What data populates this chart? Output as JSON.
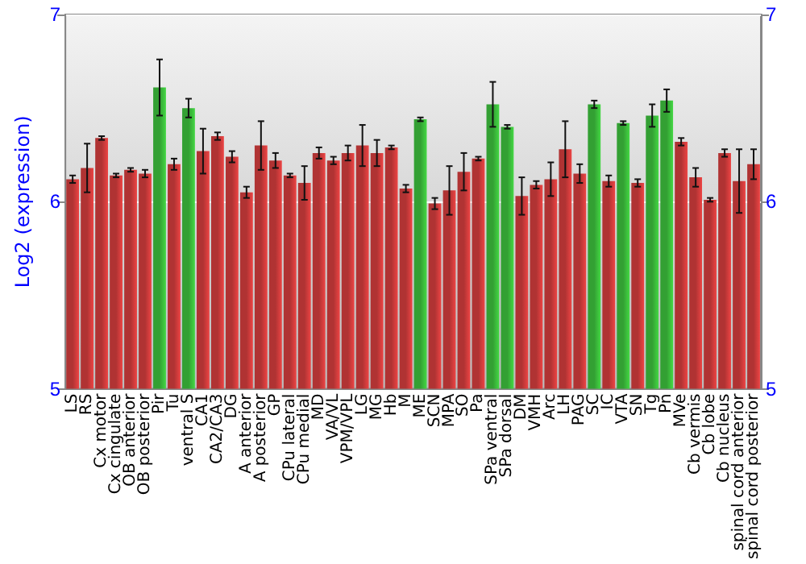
{
  "chart_data": {
    "type": "bar",
    "ylabel": "Log2 (expression)",
    "categories": [
      "LS",
      "RS",
      "Cx motor",
      "Cx cingulate",
      "OB anterior",
      "OB posterior",
      "Pir",
      "Tu",
      "ventral S",
      "CA1",
      "CA2/CA3",
      "DG",
      "A anterior",
      "A posterior",
      "GP",
      "CPu lateral",
      "CPu medial",
      "MD",
      "VA/VL",
      "VPM/VPL",
      "LG",
      "MG",
      "Hb",
      "M",
      "ME",
      "SCN",
      "MPA",
      "SO",
      "Pa",
      "SPa ventral",
      "SPa dorsal",
      "DM",
      "VMH",
      "Arc",
      "LH",
      "PAG",
      "SC",
      "IC",
      "VTA",
      "SN",
      "Tg",
      "Pn",
      "MVe",
      "Cb vermis",
      "Cb lobe",
      "Cb nucleus",
      "spinal cord anterior",
      "spinal cord posterior"
    ],
    "values": [
      6.12,
      6.18,
      6.34,
      6.14,
      6.17,
      6.15,
      6.61,
      6.2,
      6.5,
      6.27,
      6.35,
      6.24,
      6.05,
      6.3,
      6.22,
      6.14,
      6.1,
      6.26,
      6.22,
      6.26,
      6.3,
      6.26,
      6.29,
      6.07,
      6.44,
      5.99,
      6.06,
      6.16,
      6.23,
      6.52,
      6.4,
      6.03,
      6.09,
      6.12,
      6.28,
      6.15,
      6.52,
      6.11,
      6.42,
      6.1,
      6.46,
      6.54,
      6.32,
      6.13,
      6.01,
      6.26,
      6.11,
      6.2
    ],
    "errors": [
      0.02,
      0.13,
      0.01,
      0.01,
      0.01,
      0.02,
      0.15,
      0.03,
      0.05,
      0.12,
      0.02,
      0.03,
      0.03,
      0.13,
      0.04,
      0.01,
      0.09,
      0.03,
      0.02,
      0.04,
      0.11,
      0.07,
      0.01,
      0.02,
      0.01,
      0.03,
      0.13,
      0.1,
      0.01,
      0.12,
      0.01,
      0.1,
      0.02,
      0.09,
      0.15,
      0.05,
      0.02,
      0.03,
      0.01,
      0.02,
      0.06,
      0.06,
      0.02,
      0.05,
      0.01,
      0.02,
      0.17,
      0.08
    ],
    "colors": [
      "#b03333",
      "#b03333",
      "#b03333",
      "#b03333",
      "#b03333",
      "#b03333",
      "#33a033",
      "#b03333",
      "#33a033",
      "#b03333",
      "#b03333",
      "#b03333",
      "#b03333",
      "#b03333",
      "#b03333",
      "#b03333",
      "#b03333",
      "#b03333",
      "#b03333",
      "#b03333",
      "#b03333",
      "#b03333",
      "#b03333",
      "#b03333",
      "#33a033",
      "#b03333",
      "#b03333",
      "#b03333",
      "#b03333",
      "#33a033",
      "#33a033",
      "#b03333",
      "#b03333",
      "#b03333",
      "#b03333",
      "#b03333",
      "#33a033",
      "#b03333",
      "#33a033",
      "#b03333",
      "#33a033",
      "#33a033",
      "#b03333",
      "#b03333",
      "#b03333",
      "#b03333",
      "#b03333",
      "#b03333"
    ],
    "ylim": [
      5,
      7
    ],
    "yticks": [
      5,
      6,
      7
    ],
    "y2lim": [
      5,
      7
    ],
    "y2ticks": [
      5,
      6,
      7
    ],
    "grid": "y"
  }
}
